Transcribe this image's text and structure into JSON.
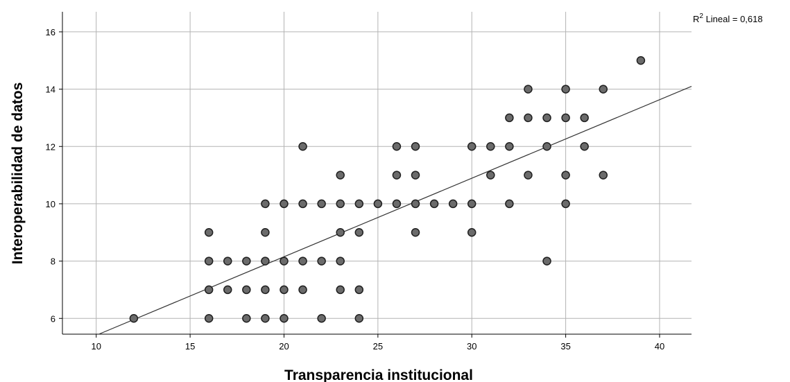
{
  "chart_data": {
    "type": "scatter",
    "title": "",
    "xlabel": "Transparencia institucional",
    "ylabel": "Interoperabilidad de datos",
    "xlim": [
      8.2,
      41.7
    ],
    "ylim": [
      5.45,
      16.7
    ],
    "x_ticks": [
      10,
      15,
      20,
      25,
      30,
      35,
      40
    ],
    "y_ticks": [
      6,
      8,
      10,
      12,
      14,
      16
    ],
    "grid": true,
    "fit_line": {
      "type": "linear",
      "label_prefix": "R",
      "label_superscript": "2",
      "label_suffix": " Lineal = 0,618"
    },
    "points": [
      {
        "x": 12,
        "y": 6
      },
      {
        "x": 16,
        "y": 6
      },
      {
        "x": 16,
        "y": 7
      },
      {
        "x": 16,
        "y": 8
      },
      {
        "x": 16,
        "y": 9
      },
      {
        "x": 17,
        "y": 7
      },
      {
        "x": 17,
        "y": 8
      },
      {
        "x": 18,
        "y": 6
      },
      {
        "x": 18,
        "y": 7
      },
      {
        "x": 18,
        "y": 8
      },
      {
        "x": 19,
        "y": 6
      },
      {
        "x": 19,
        "y": 7
      },
      {
        "x": 19,
        "y": 8
      },
      {
        "x": 19,
        "y": 9
      },
      {
        "x": 19,
        "y": 10
      },
      {
        "x": 20,
        "y": 6
      },
      {
        "x": 20,
        "y": 7
      },
      {
        "x": 20,
        "y": 8
      },
      {
        "x": 20,
        "y": 10
      },
      {
        "x": 21,
        "y": 7
      },
      {
        "x": 21,
        "y": 8
      },
      {
        "x": 21,
        "y": 10
      },
      {
        "x": 21,
        "y": 12
      },
      {
        "x": 22,
        "y": 6
      },
      {
        "x": 22,
        "y": 8
      },
      {
        "x": 22,
        "y": 10
      },
      {
        "x": 23,
        "y": 7
      },
      {
        "x": 23,
        "y": 8
      },
      {
        "x": 23,
        "y": 9
      },
      {
        "x": 23,
        "y": 10
      },
      {
        "x": 23,
        "y": 11
      },
      {
        "x": 24,
        "y": 6
      },
      {
        "x": 24,
        "y": 7
      },
      {
        "x": 24,
        "y": 9
      },
      {
        "x": 24,
        "y": 10
      },
      {
        "x": 25,
        "y": 10
      },
      {
        "x": 26,
        "y": 10
      },
      {
        "x": 26,
        "y": 11
      },
      {
        "x": 26,
        "y": 12
      },
      {
        "x": 27,
        "y": 9
      },
      {
        "x": 27,
        "y": 10
      },
      {
        "x": 27,
        "y": 11
      },
      {
        "x": 27,
        "y": 12
      },
      {
        "x": 28,
        "y": 10
      },
      {
        "x": 29,
        "y": 10
      },
      {
        "x": 30,
        "y": 9
      },
      {
        "x": 30,
        "y": 10
      },
      {
        "x": 30,
        "y": 12
      },
      {
        "x": 31,
        "y": 11
      },
      {
        "x": 31,
        "y": 12
      },
      {
        "x": 32,
        "y": 10
      },
      {
        "x": 32,
        "y": 12
      },
      {
        "x": 32,
        "y": 13
      },
      {
        "x": 33,
        "y": 11
      },
      {
        "x": 33,
        "y": 13
      },
      {
        "x": 33,
        "y": 14
      },
      {
        "x": 34,
        "y": 8
      },
      {
        "x": 34,
        "y": 12
      },
      {
        "x": 34,
        "y": 13
      },
      {
        "x": 35,
        "y": 10
      },
      {
        "x": 35,
        "y": 11
      },
      {
        "x": 35,
        "y": 13
      },
      {
        "x": 35,
        "y": 14
      },
      {
        "x": 36,
        "y": 12
      },
      {
        "x": 36,
        "y": 13
      },
      {
        "x": 37,
        "y": 11
      },
      {
        "x": 37,
        "y": 14
      },
      {
        "x": 39,
        "y": 15
      }
    ],
    "colors": {
      "marker_fill": "#6b6b6b",
      "marker_stroke": "#1f1f1f",
      "grid": "#b3b3b3",
      "axis": "#000000",
      "fit_line": "#333333"
    }
  }
}
